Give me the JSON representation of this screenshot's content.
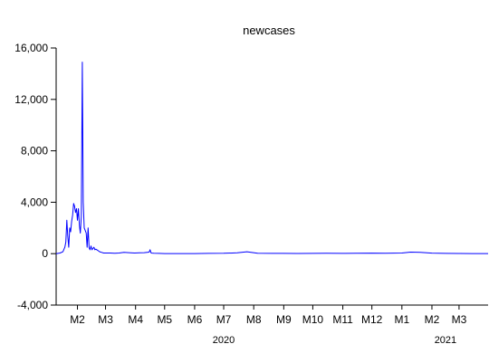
{
  "chart_data": {
    "type": "line",
    "title": "newcases",
    "xlabel": "",
    "ylabel": "",
    "ylim": [
      -4000,
      16000
    ],
    "grid": false,
    "legend": "none",
    "y_ticks": [
      "16,000",
      "12,000",
      "8,000",
      "4,000",
      "0",
      "-4,000"
    ],
    "y_tick_values": [
      16000,
      12000,
      8000,
      4000,
      0,
      -4000
    ],
    "x_range": [
      "2020-01-10",
      "2021-03-31"
    ],
    "x_month_ticks": [
      {
        "label": "M2",
        "date": "2020-02-01"
      },
      {
        "label": "M3",
        "date": "2020-03-01"
      },
      {
        "label": "M4",
        "date": "2020-04-01"
      },
      {
        "label": "M5",
        "date": "2020-05-01"
      },
      {
        "label": "M6",
        "date": "2020-06-01"
      },
      {
        "label": "M7",
        "date": "2020-07-01"
      },
      {
        "label": "M8",
        "date": "2020-08-01"
      },
      {
        "label": "M9",
        "date": "2020-09-01"
      },
      {
        "label": "M10",
        "date": "2020-10-01"
      },
      {
        "label": "M11",
        "date": "2020-11-01"
      },
      {
        "label": "M12",
        "date": "2020-12-01"
      },
      {
        "label": "M1",
        "date": "2021-01-01"
      },
      {
        "label": "M2",
        "date": "2021-02-01"
      },
      {
        "label": "M3",
        "date": "2021-03-01"
      }
    ],
    "x_year_labels": [
      {
        "label": "2020",
        "date": "2020-07-01"
      },
      {
        "label": "2021",
        "date": "2021-02-15"
      }
    ],
    "series": [
      {
        "color": "#0000ff",
        "x": [
          "2020-01-10",
          "2020-01-14",
          "2020-01-17",
          "2020-01-19",
          "2020-01-20",
          "2020-01-21",
          "2020-01-22",
          "2020-01-23",
          "2020-01-24",
          "2020-01-25",
          "2020-01-26",
          "2020-01-27",
          "2020-01-28",
          "2020-01-29",
          "2020-01-30",
          "2020-01-31",
          "2020-02-01",
          "2020-02-02",
          "2020-02-03",
          "2020-02-04",
          "2020-02-05",
          "2020-02-06",
          "2020-02-07",
          "2020-02-08",
          "2020-02-09",
          "2020-02-10",
          "2020-02-11",
          "2020-02-12",
          "2020-02-13",
          "2020-02-14",
          "2020-02-15",
          "2020-02-16",
          "2020-02-17",
          "2020-02-18",
          "2020-02-19",
          "2020-02-20",
          "2020-02-21",
          "2020-02-22",
          "2020-02-24",
          "2020-02-26",
          "2020-02-28",
          "2020-03-02",
          "2020-03-06",
          "2020-03-10",
          "2020-03-15",
          "2020-03-20",
          "2020-03-25",
          "2020-03-31",
          "2020-04-05",
          "2020-04-10",
          "2020-04-15",
          "2020-04-16",
          "2020-04-17",
          "2020-04-18",
          "2020-04-20",
          "2020-04-25",
          "2020-05-01",
          "2020-05-15",
          "2020-06-01",
          "2020-06-15",
          "2020-07-01",
          "2020-07-15",
          "2020-07-25",
          "2020-08-05",
          "2020-08-20",
          "2020-09-01",
          "2020-09-15",
          "2020-10-01",
          "2020-10-15",
          "2020-11-01",
          "2020-11-15",
          "2020-12-01",
          "2020-12-15",
          "2021-01-01",
          "2021-01-10",
          "2021-01-20",
          "2021-02-01",
          "2021-02-15",
          "2021-03-01",
          "2021-03-15",
          "2021-03-31"
        ],
        "y": [
          0,
          50,
          150,
          500,
          900,
          2600,
          1400,
          500,
          2000,
          1700,
          2500,
          3000,
          3900,
          3700,
          3200,
          3500,
          2600,
          3500,
          2200,
          1600,
          2900,
          14900,
          4000,
          2000,
          1800,
          1600,
          500,
          2000,
          450,
          300,
          600,
          300,
          400,
          500,
          300,
          350,
          300,
          250,
          150,
          100,
          50,
          50,
          50,
          30,
          50,
          100,
          80,
          50,
          60,
          80,
          120,
          300,
          60,
          40,
          30,
          20,
          10,
          5,
          10,
          20,
          30,
          60,
          150,
          30,
          20,
          20,
          15,
          20,
          25,
          20,
          30,
          40,
          30,
          50,
          120,
          100,
          40,
          20,
          15,
          10,
          10
        ]
      }
    ]
  }
}
